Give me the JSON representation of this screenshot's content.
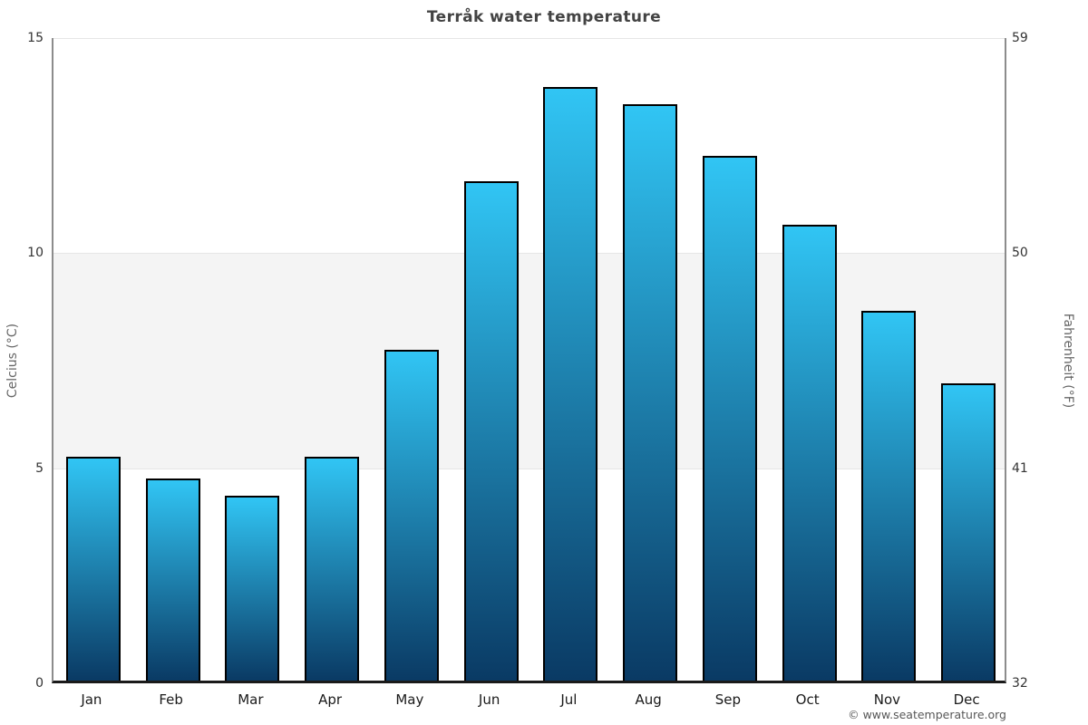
{
  "chart_data": {
    "type": "bar",
    "title": "Terråk water temperature",
    "categories": [
      "Jan",
      "Feb",
      "Mar",
      "Apr",
      "May",
      "Jun",
      "Jul",
      "Aug",
      "Sep",
      "Oct",
      "Nov",
      "Dec"
    ],
    "values": [
      5.2,
      4.7,
      4.3,
      5.2,
      7.7,
      11.6,
      13.8,
      13.4,
      12.2,
      10.6,
      8.6,
      6.9
    ],
    "ylabel_left": "Celcius (°C)",
    "ylabel_right": "Fahrenheit (°F)",
    "ylim": [
      0,
      15
    ],
    "yticks_celsius": [
      15,
      10,
      5,
      0
    ],
    "yticks_fahrenheit": [
      59,
      50,
      41,
      32
    ],
    "gridlines_celsius": [
      15,
      10,
      5
    ],
    "shaded_band_celsius": [
      5,
      10
    ],
    "legend": "none",
    "grid": "horizontal",
    "colors": {
      "bar_gradient_top": "#31c5f4",
      "bar_gradient_bottom": "#0a3a64",
      "bar_border": "#000000",
      "band": "#f4f4f4",
      "gridline": "#e6e6e6",
      "spine": "#8c8c8c",
      "axis_line": "#1a1a1a",
      "title": "#434343",
      "tick": "#333333",
      "axis_label": "#666666",
      "copyright": "#575757"
    }
  },
  "footer": {
    "copyright": "© www.seatemperature.org"
  }
}
